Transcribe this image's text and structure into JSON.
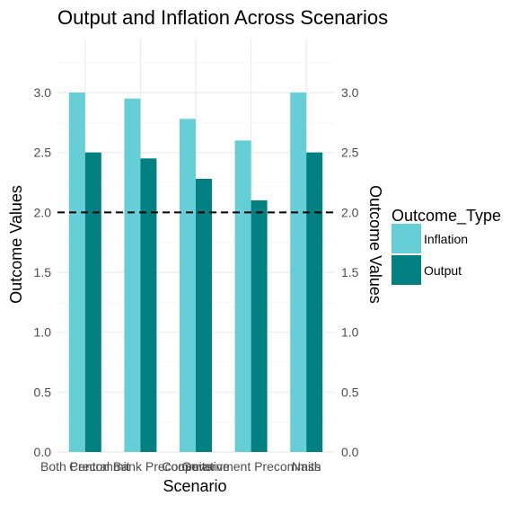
{
  "chart_data": {
    "type": "bar",
    "title": "Output and Inflation Across Scenarios",
    "xlabel": "Scenario",
    "ylabel": "Outcome Values",
    "ylabel_right": "Outcome Values",
    "categories": [
      "Both Precommit",
      "Central Bank Precommits",
      "Cooperative",
      "Government Precommits",
      "Nash"
    ],
    "series": [
      {
        "name": "Inflation",
        "color": "#66CED6",
        "values": [
          3.0,
          2.95,
          2.78,
          2.6,
          3.0
        ]
      },
      {
        "name": "Output",
        "color": "#008080",
        "values": [
          2.5,
          2.45,
          2.28,
          2.1,
          2.5
        ]
      }
    ],
    "yticks": [
      "0.0",
      "0.5",
      "1.0",
      "1.5",
      "2.0",
      "2.5",
      "3.0"
    ],
    "ylim": [
      0,
      3.45
    ],
    "reference_line": {
      "y": 2.0,
      "style": "dashed",
      "color": "#000000"
    },
    "legend": {
      "title": "Outcome_Type",
      "position": "right",
      "items": [
        "Inflation",
        "Output"
      ]
    },
    "grid": true
  }
}
